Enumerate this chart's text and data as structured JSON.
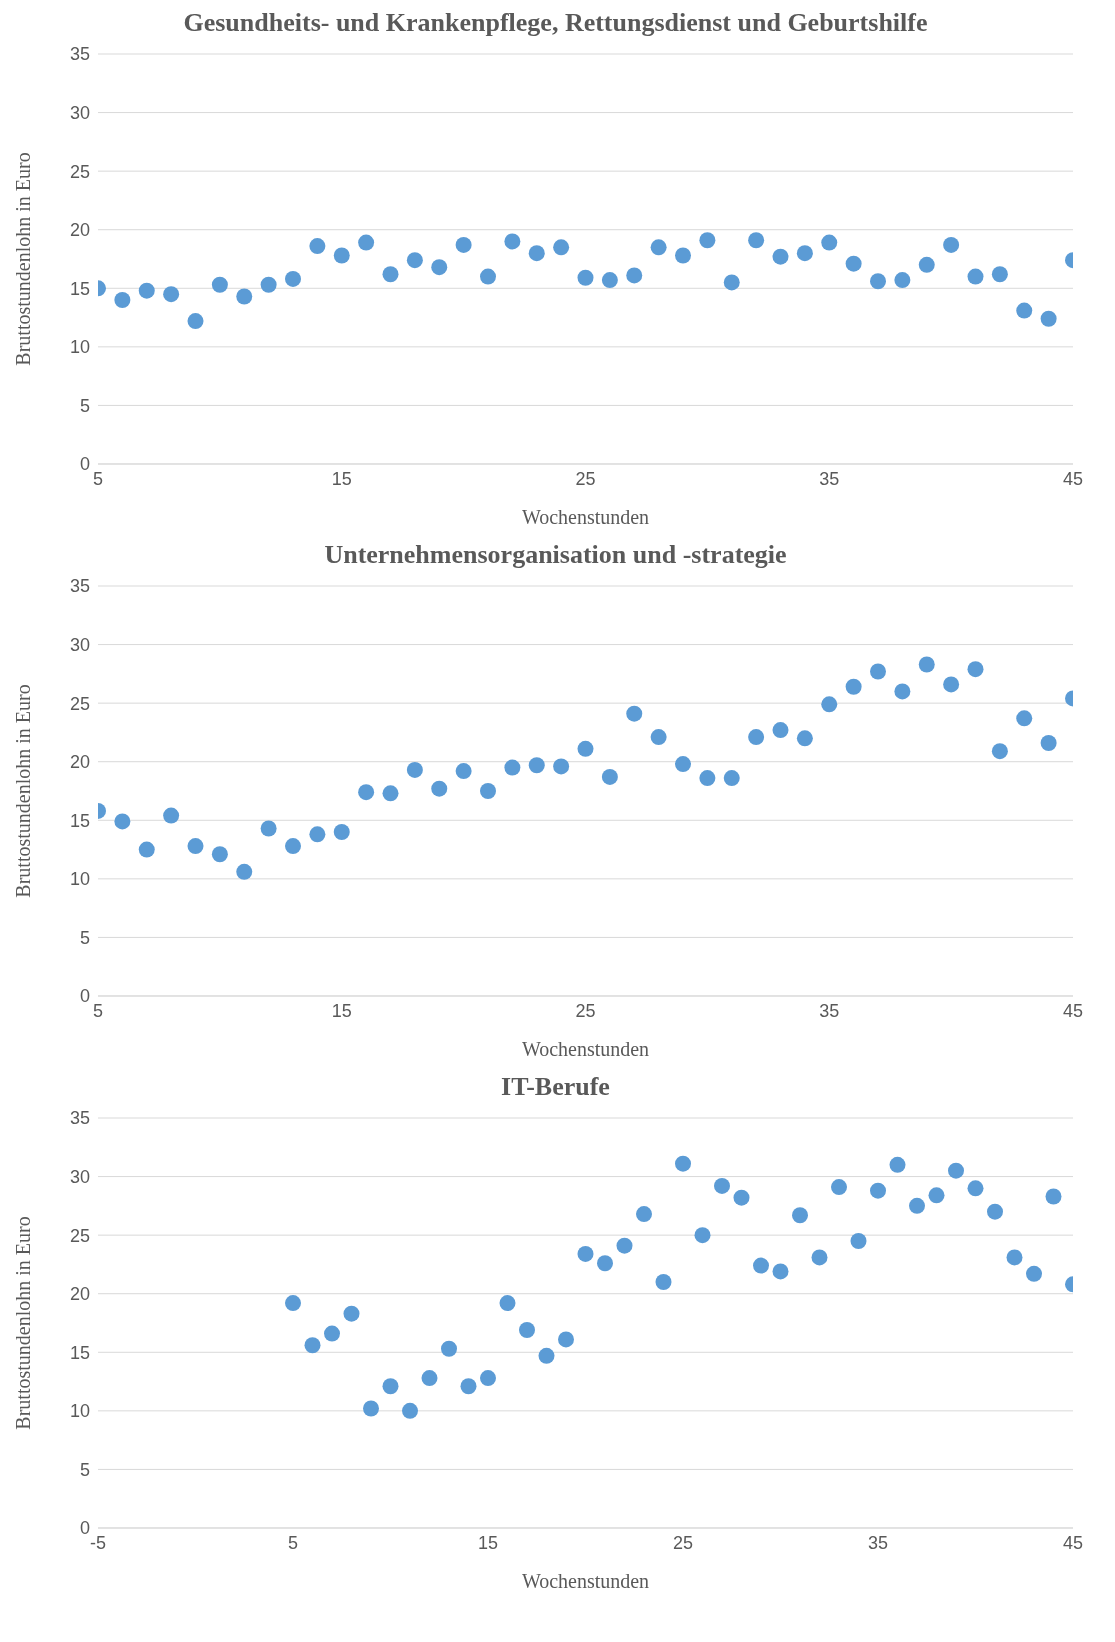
{
  "chart_data": [
    {
      "type": "scatter",
      "title": "Gesundheits- und Krankenpflege, Rettungsdienst und Geburtshilfe",
      "xlabel": "Wochenstunden",
      "ylabel": "Bruttostundenlohn in Euro",
      "x": [
        5,
        6,
        7,
        8,
        9,
        10,
        11,
        12,
        13,
        14,
        15,
        16,
        17,
        18,
        19,
        20,
        21,
        22,
        23,
        24,
        25,
        26,
        27,
        28,
        29,
        30,
        31,
        32,
        33,
        34,
        35,
        36,
        37,
        38,
        39,
        40,
        41,
        42,
        43,
        44,
        45
      ],
      "values": [
        15,
        14,
        14.8,
        14.5,
        12.2,
        15.3,
        14.3,
        15.3,
        15.8,
        18.6,
        17.8,
        18.9,
        16.2,
        17.4,
        16.8,
        18.7,
        16,
        19,
        18,
        18.5,
        15.9,
        15.7,
        16.1,
        18.5,
        17.8,
        19.1,
        15.5,
        19.1,
        17.7,
        18,
        18.9,
        17.1,
        15.6,
        15.7,
        17,
        18.7,
        16,
        16.2,
        13.1,
        12.4,
        17.4
      ],
      "color": "#5b9bd5",
      "marker": "circle",
      "grid": "y",
      "xlim": [
        5,
        45
      ],
      "xticks": [
        5,
        15,
        25,
        35,
        45
      ],
      "ylim": [
        0,
        35
      ],
      "yticks": [
        0,
        5,
        10,
        15,
        20,
        25,
        30,
        35
      ]
    },
    {
      "type": "scatter",
      "title": "Unternehmensorganisation und -strategie",
      "xlabel": "Wochenstunden",
      "ylabel": "Bruttostundenlohn in Euro",
      "x": [
        5,
        6,
        7,
        8,
        9,
        10,
        11,
        12,
        13,
        14,
        15,
        16,
        17,
        18,
        19,
        20,
        21,
        22,
        23,
        24,
        25,
        26,
        27,
        28,
        29,
        30,
        31,
        32,
        33,
        34,
        35,
        36,
        37,
        38,
        39,
        40,
        41,
        42,
        43,
        44,
        45
      ],
      "values": [
        15.8,
        14.9,
        12.5,
        15.4,
        12.8,
        12.1,
        10.6,
        14.3,
        12.8,
        13.8,
        14,
        17.4,
        17.3,
        19.3,
        17.7,
        19.2,
        17.5,
        19.5,
        19.7,
        19.6,
        21.1,
        18.7,
        24.1,
        22.1,
        19.8,
        18.6,
        18.6,
        22.1,
        22.7,
        22,
        24.9,
        26.4,
        27.7,
        26,
        28.3,
        26.6,
        27.9,
        20.9,
        23.7,
        21.6,
        25.4
      ],
      "color": "#5b9bd5",
      "marker": "circle",
      "grid": "y",
      "xlim": [
        5,
        45
      ],
      "xticks": [
        5,
        15,
        25,
        35,
        45
      ],
      "ylim": [
        0,
        35
      ],
      "yticks": [
        0,
        5,
        10,
        15,
        20,
        25,
        30,
        35
      ]
    },
    {
      "type": "scatter",
      "title": "IT-Berufe",
      "xlabel": "Wochenstunden",
      "ylabel": "Bruttostundenlohn in Euro",
      "x": [
        5,
        6,
        7,
        8,
        9,
        10,
        11,
        12,
        13,
        14,
        15,
        16,
        17,
        18,
        19,
        20,
        21,
        22,
        23,
        24,
        25,
        26,
        27,
        28,
        29,
        30,
        31,
        32,
        33,
        34,
        35,
        36,
        37,
        38,
        39,
        40,
        41,
        42,
        43,
        44,
        45
      ],
      "values": [
        19.2,
        15.6,
        16.6,
        18.3,
        10.2,
        12.1,
        10,
        12.8,
        15.3,
        12.1,
        12.8,
        19.2,
        16.9,
        14.7,
        16.1,
        23.4,
        22.6,
        24.1,
        26.8,
        21,
        31.1,
        25,
        29.2,
        28.2,
        22.4,
        21.9,
        26.7,
        23.1,
        29.1,
        24.5,
        28.8,
        31,
        27.5,
        28.4,
        30.5,
        29,
        27,
        23.1,
        21.7,
        28.3,
        20.8
      ],
      "color": "#5b9bd5",
      "marker": "circle",
      "grid": "y",
      "xlim": [
        -5,
        45
      ],
      "xticks": [
        -5,
        5,
        15,
        25,
        35,
        45
      ],
      "ylim": [
        0,
        35
      ],
      "yticks": [
        0,
        5,
        10,
        15,
        20,
        25,
        30,
        35
      ]
    }
  ]
}
